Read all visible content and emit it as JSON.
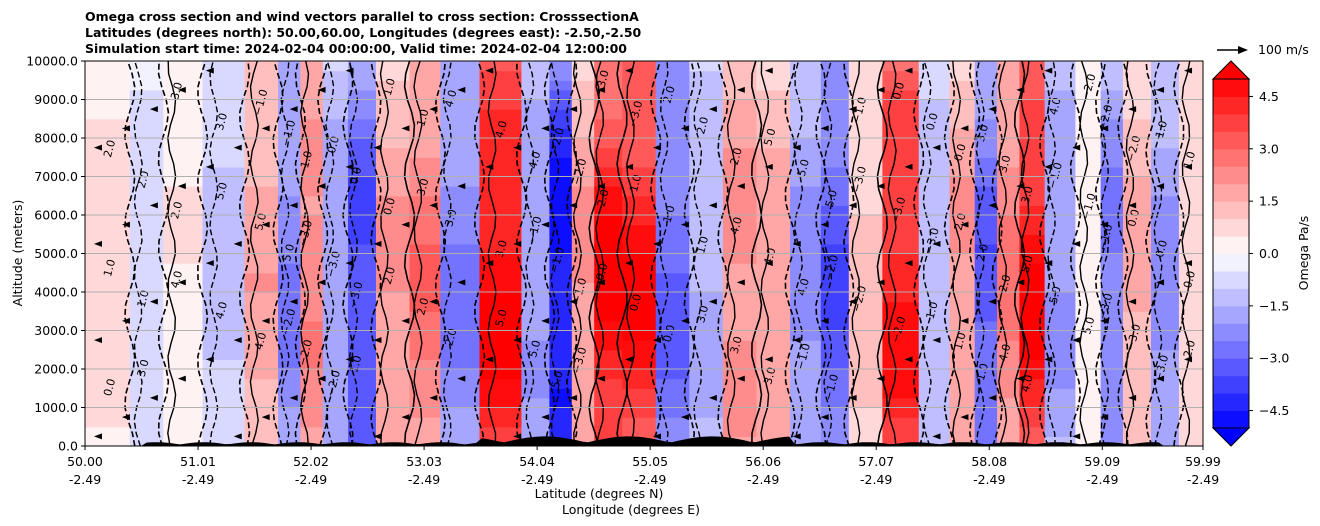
{
  "title": {
    "line1": "Omega cross section and wind vectors parallel to cross section: CrosssectionA",
    "line2": "Latitudes (degrees north): 50.00,60.00, Longitudes (degrees east): -2.50,-2.50",
    "line3": "Simulation start time: 2024-02-04 00:00:00, Valid time: 2024-02-04 12:00:00"
  },
  "chart_data": {
    "type": "heatmap",
    "title": "Omega cross section and wind vectors parallel to cross section: CrosssectionA",
    "ylabel": "Altitude (meters)",
    "xlabel_lat": "Latitude (degrees N)",
    "xlabel_lon": "Longitude (degrees E)",
    "ylim": [
      0,
      10000
    ],
    "yticks": [
      "0.0",
      "1000.0",
      "2000.0",
      "3000.0",
      "4000.0",
      "5000.0",
      "6000.0",
      "7000.0",
      "8000.0",
      "9000.0",
      "10000.0"
    ],
    "xticks_lat": [
      "50.00",
      "51.01",
      "52.02",
      "53.03",
      "54.04",
      "55.05",
      "56.06",
      "57.07",
      "58.08",
      "59.09",
      "59.99"
    ],
    "xticks_lon": [
      "-2.49",
      "-2.49",
      "-2.49",
      "-2.49",
      "-2.49",
      "-2.49",
      "-2.49",
      "-2.49",
      "-2.49",
      "-2.49",
      "-2.49"
    ],
    "xlim": [
      50.0,
      59.99
    ],
    "grid": "horizontal",
    "colorbar": {
      "label": "Omega Pa/s",
      "ticks": [
        "4.5",
        "3.0",
        "1.5",
        "0.0",
        "−1.5",
        "−3.0",
        "−4.5"
      ],
      "range": [
        -5.0,
        5.0
      ],
      "extend": "both",
      "colormap": "bwr"
    },
    "reference_vector": "100 m/s",
    "omega_bands": [
      {
        "lat": 50.25,
        "value": 0.6
      },
      {
        "lat": 50.55,
        "value": -0.8
      },
      {
        "lat": 50.85,
        "value": 0.5
      },
      {
        "lat": 51.25,
        "value": -1.2
      },
      {
        "lat": 51.6,
        "value": 1.8
      },
      {
        "lat": 51.85,
        "value": -2.5
      },
      {
        "lat": 52.0,
        "value": 2.4
      },
      {
        "lat": 52.25,
        "value": -1.8
      },
      {
        "lat": 52.45,
        "value": -3.5
      },
      {
        "lat": 52.75,
        "value": 2.0
      },
      {
        "lat": 53.05,
        "value": 2.8
      },
      {
        "lat": 53.3,
        "value": -2.6
      },
      {
        "lat": 53.75,
        "value": 5.0
      },
      {
        "lat": 54.05,
        "value": -2.0
      },
      {
        "lat": 54.25,
        "value": -4.8
      },
      {
        "lat": 54.45,
        "value": 2.0
      },
      {
        "lat": 54.65,
        "value": 5.0
      },
      {
        "lat": 54.95,
        "value": 4.8
      },
      {
        "lat": 55.25,
        "value": -3.0
      },
      {
        "lat": 55.55,
        "value": -1.6
      },
      {
        "lat": 55.85,
        "value": 2.2
      },
      {
        "lat": 56.15,
        "value": 1.8
      },
      {
        "lat": 56.45,
        "value": -2.2
      },
      {
        "lat": 56.7,
        "value": -3.4
      },
      {
        "lat": 56.95,
        "value": 1.2
      },
      {
        "lat": 57.3,
        "value": 4.6
      },
      {
        "lat": 57.6,
        "value": -1.4
      },
      {
        "lat": 57.85,
        "value": 2.0
      },
      {
        "lat": 58.05,
        "value": -3.2
      },
      {
        "lat": 58.25,
        "value": 2.6
      },
      {
        "lat": 58.45,
        "value": 4.9
      },
      {
        "lat": 58.7,
        "value": -2.0
      },
      {
        "lat": 59.0,
        "value": 0.4
      },
      {
        "lat": 59.15,
        "value": -2.6
      },
      {
        "lat": 59.4,
        "value": 1.6
      },
      {
        "lat": 59.65,
        "value": -2.2
      },
      {
        "lat": 59.9,
        "value": 0.8
      }
    ],
    "contour_labels": [
      "0.0",
      "1.0",
      "2.0",
      "3.0",
      "4.0",
      "5.0",
      "−1.0",
      "−2.0",
      "−3.0"
    ]
  }
}
